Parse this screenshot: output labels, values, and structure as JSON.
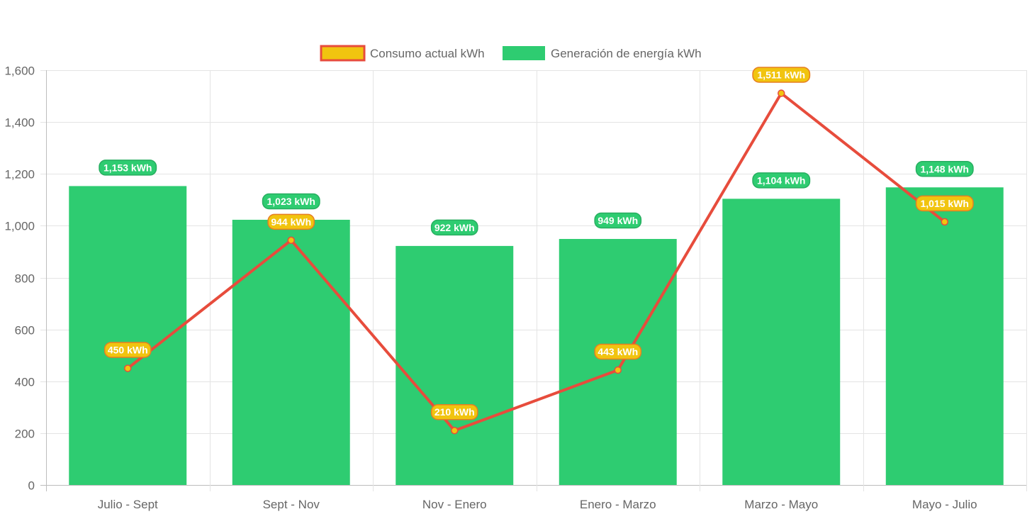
{
  "chart_data": {
    "type": "bar",
    "categories": [
      "Julio - Sept",
      "Sept - Nov",
      "Nov - Enero",
      "Enero - Marzo",
      "Marzo - Mayo",
      "Mayo - Julio"
    ],
    "series": [
      {
        "name": "Consumo actual kWh",
        "type": "line",
        "values": [
          450,
          944,
          210,
          443,
          1511,
          1015
        ],
        "labels": [
          "450 kWh",
          "944 kWh",
          "210 kWh",
          "443 kWh",
          "1,511 kWh",
          "1,015 kWh"
        ],
        "color": "#e74c3c",
        "point_color": "#f1c40f"
      },
      {
        "name": "Generación de energía kWh",
        "type": "bar",
        "values": [
          1153,
          1023,
          922,
          949,
          1104,
          1148
        ],
        "labels": [
          "1,153 kWh",
          "1,023 kWh",
          "922 kWh",
          "949 kWh",
          "1,104 kWh",
          "1,148 kWh"
        ],
        "color": "#2ecc71"
      }
    ],
    "yticks": [
      "0",
      "200",
      "400",
      "600",
      "800",
      "1,000",
      "1,200",
      "1,400",
      "1,600"
    ],
    "ylim": [
      0,
      1600
    ],
    "grid": true,
    "legend_position": "top"
  }
}
